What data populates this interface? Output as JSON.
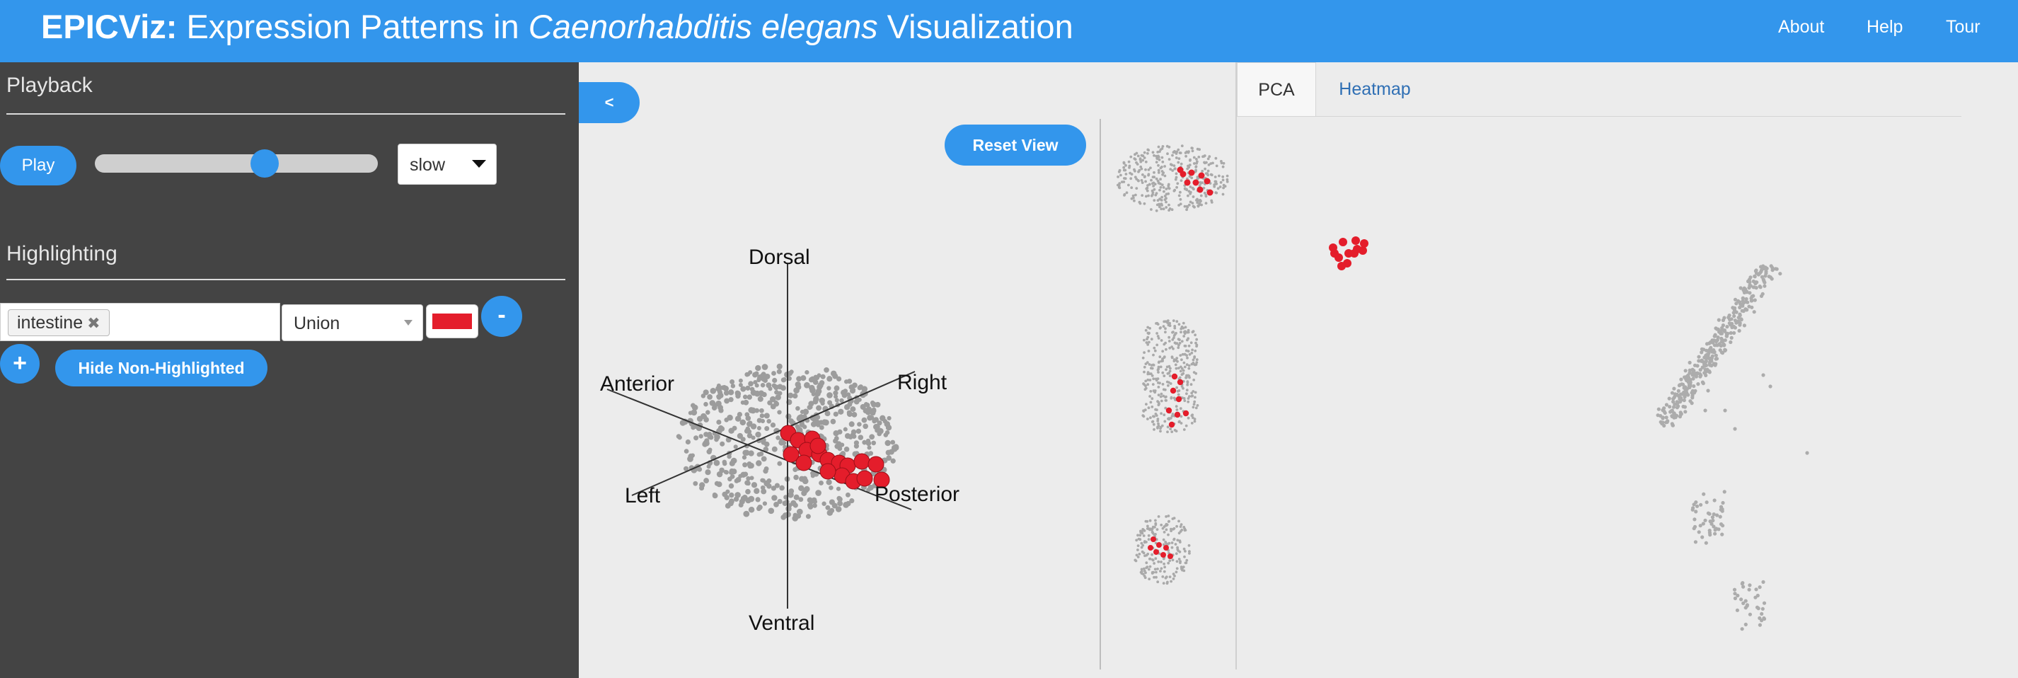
{
  "header": {
    "brand": "EPICViz:",
    "title_pre": " Expression Patterns in ",
    "title_italic": "Caenorhabditis elegans",
    "title_post": " Visualization",
    "nav": [
      "About",
      "Help",
      "Tour"
    ]
  },
  "playback": {
    "title": "Playback",
    "play_label": "Play",
    "slider_value_fraction": 0.6,
    "speed_value": "slow"
  },
  "highlighting": {
    "title": "Highlighting",
    "tags": [
      "intestine"
    ],
    "tag_remove": "✖",
    "mode_value": "Union",
    "color": "#e41d2b",
    "remove_label": "-",
    "add_label": "+",
    "hide_label": "Hide Non-Highlighted"
  },
  "viewer": {
    "collapse_label": "<",
    "reset_label": "Reset View",
    "axes": {
      "dorsal": "Dorsal",
      "ventral": "Ventral",
      "anterior": "Anterior",
      "posterior": "Posterior",
      "left": "Left",
      "right": "Right"
    }
  },
  "tabs": {
    "pca": "PCA",
    "heatmap": "Heatmap",
    "active": "PCA"
  },
  "colors": {
    "accent": "#3396ec",
    "panel": "#444444",
    "highlight": "#e41d2b",
    "cell": "#a9a9a9"
  }
}
